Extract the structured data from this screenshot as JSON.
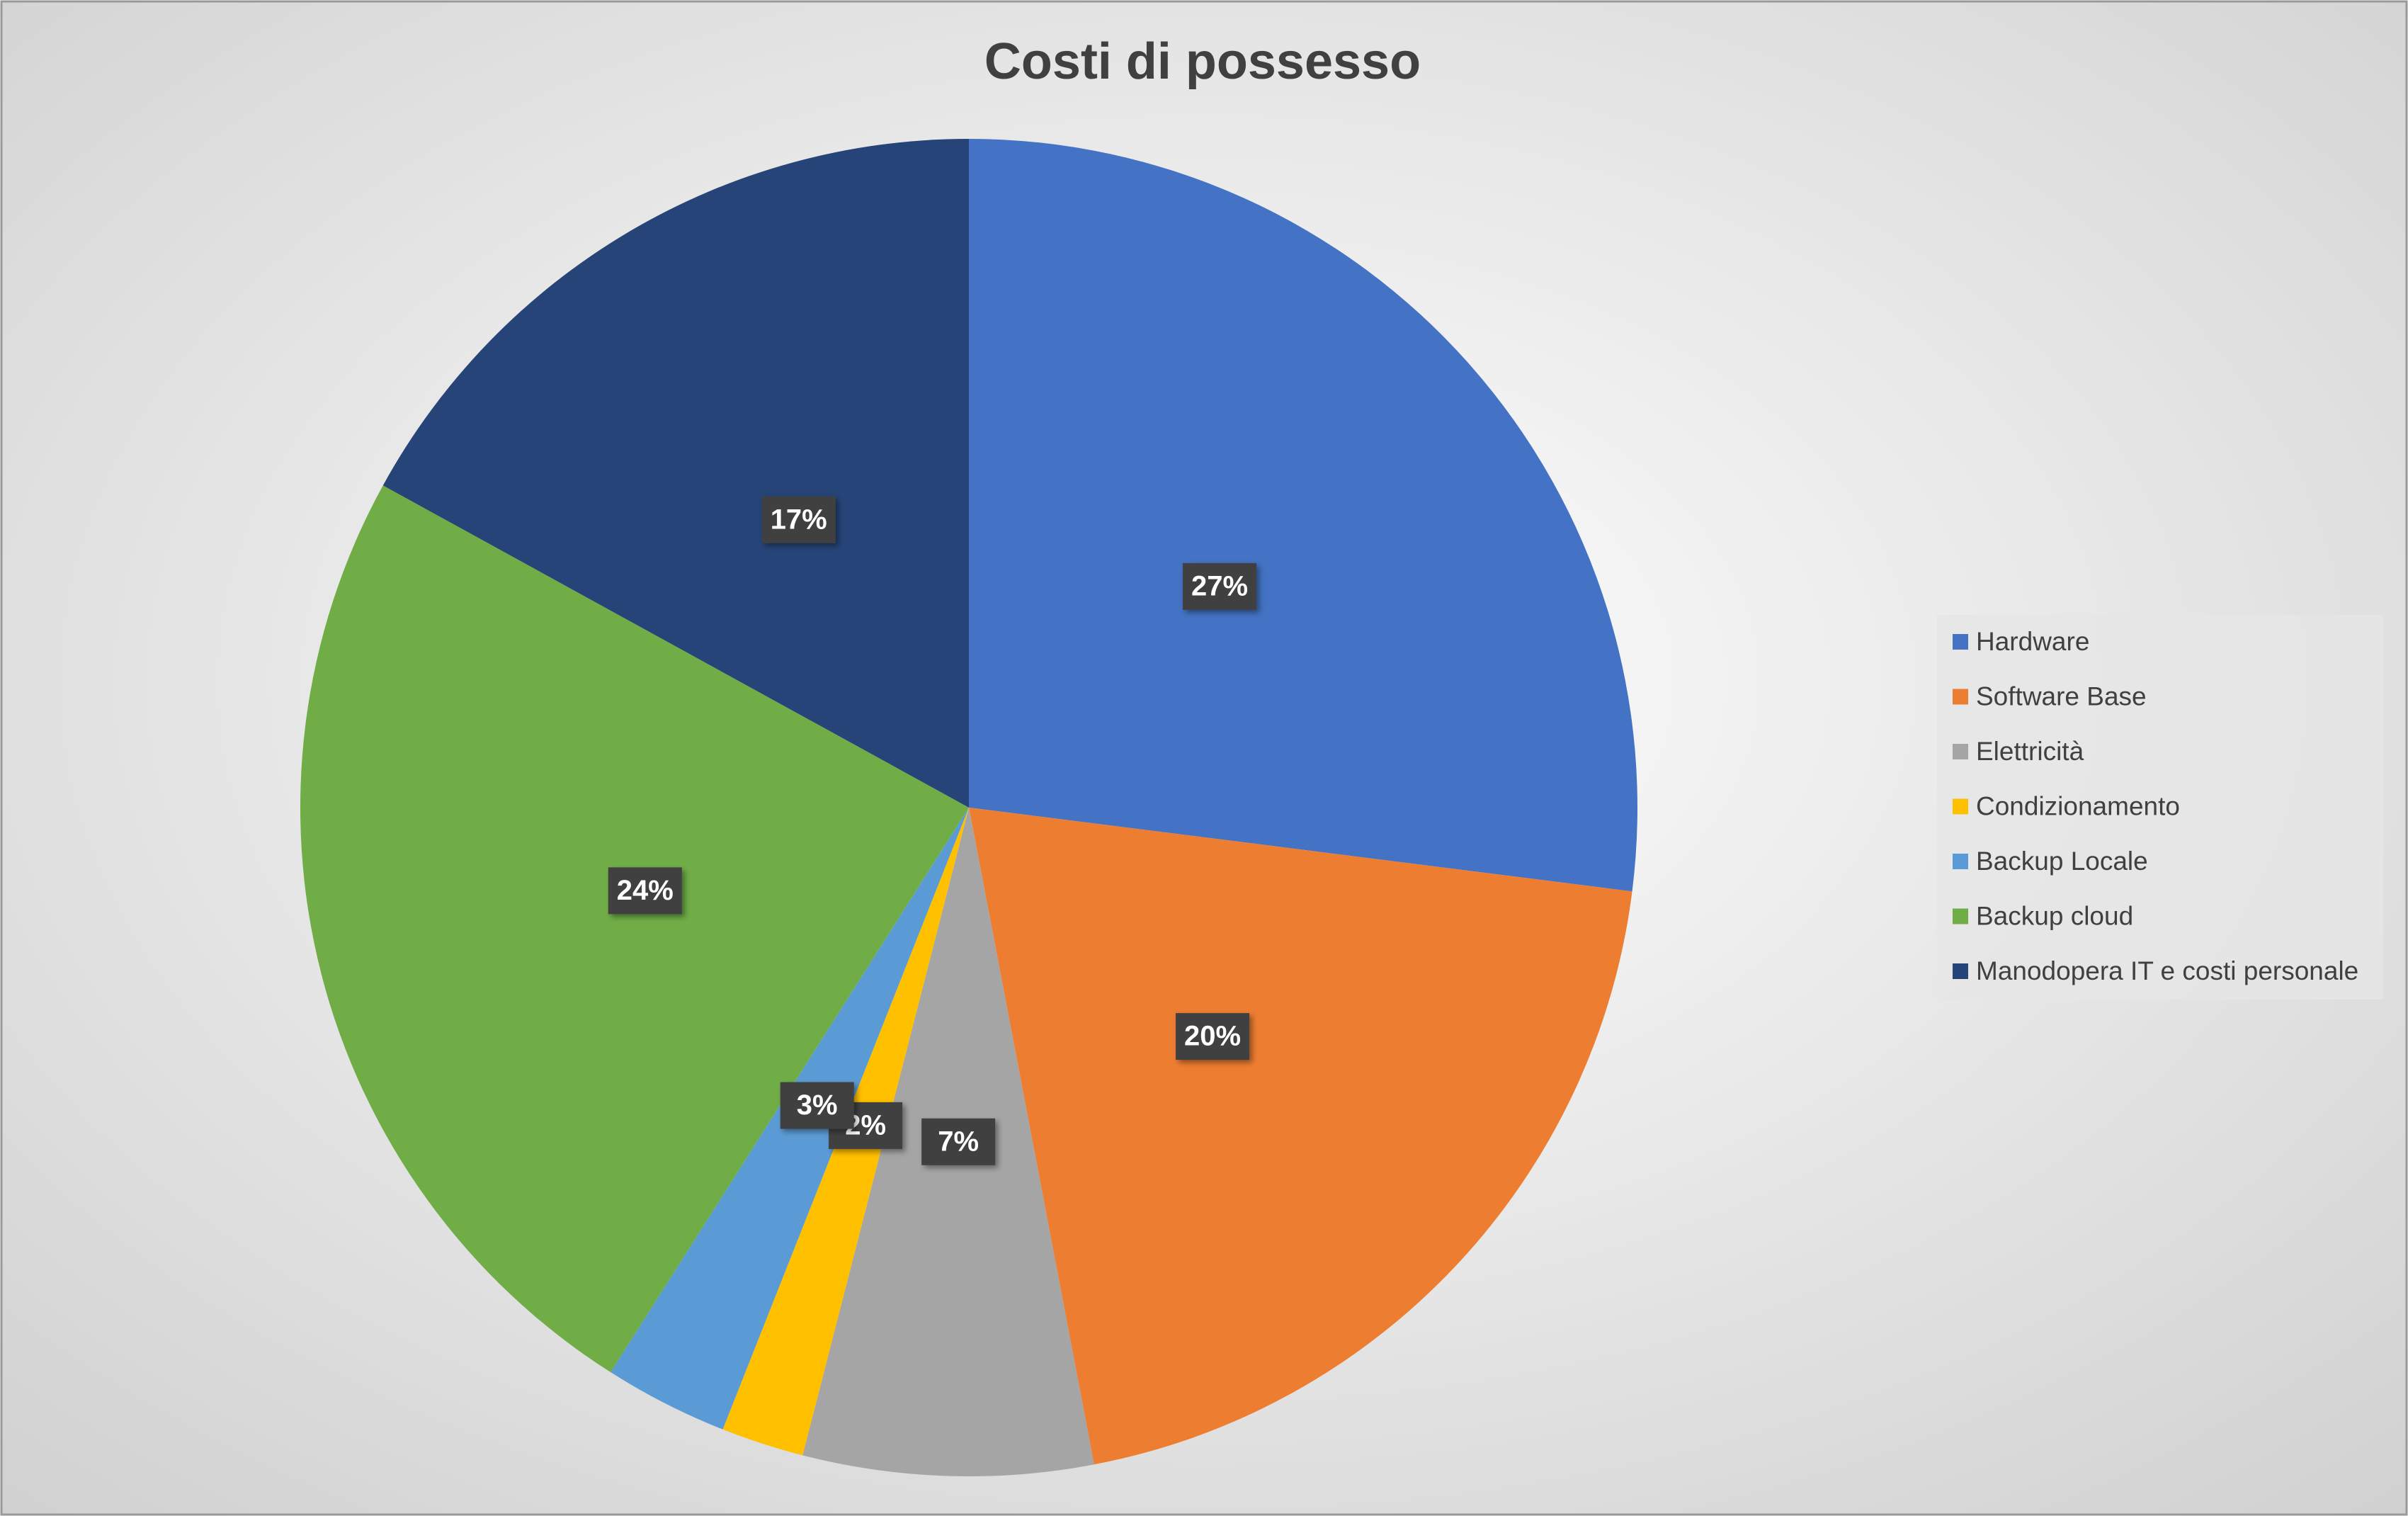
{
  "chart_data": {
    "type": "pie",
    "title": "Costi di possesso",
    "categories": [
      "Hardware",
      "Software Base",
      "Elettricità",
      "Condizionamento",
      "Backup Locale",
      "Backup cloud",
      "Manodopera IT e costi personale"
    ],
    "values": [
      27,
      20,
      7,
      2,
      3,
      24,
      17
    ],
    "value_labels": [
      "27%",
      "20%",
      "7%",
      "2%",
      "3%",
      "24%",
      "17%"
    ],
    "colors": [
      "#4472c4",
      "#ed7d31",
      "#a5a5a5",
      "#ffc000",
      "#5b9bd5",
      "#70ad47",
      "#264478"
    ],
    "legend": "right"
  }
}
